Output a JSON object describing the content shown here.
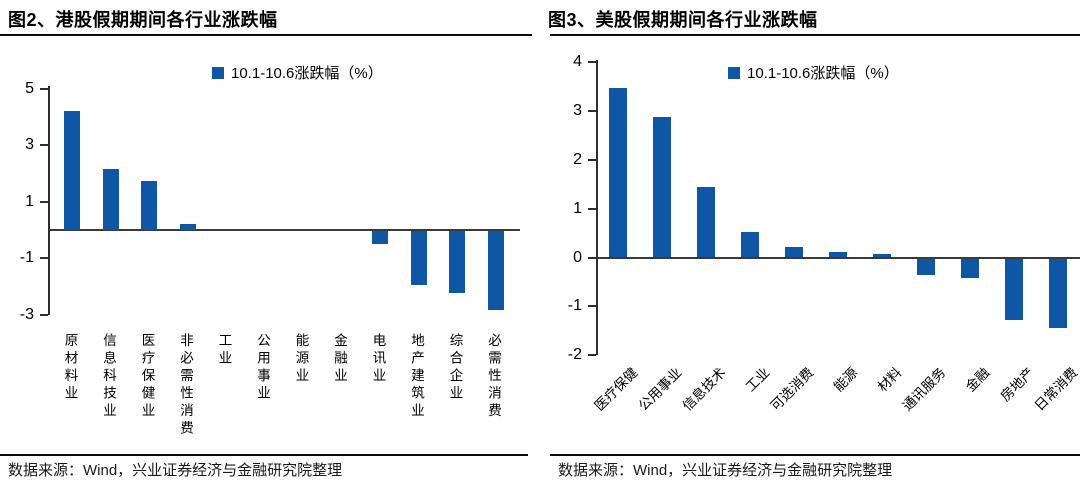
{
  "accent_color": "#0f57a5",
  "chart_data": [
    {
      "type": "bar",
      "panel_title": "图2、港股假期期间各行业涨跌幅",
      "legend": "10.1-10.6涨跌幅（%）",
      "legend_position": "top",
      "grid": false,
      "bar_color": "#0f57a5",
      "categories": [
        "原材料业",
        "信息科技业",
        "医疗保健业",
        "非必需性消费",
        "工业",
        "公用事业",
        "能源业",
        "金融业",
        "电讯业",
        "地产建筑业",
        "综合企业",
        "必需性消费"
      ],
      "values": [
        4.2,
        2.15,
        1.75,
        0.2,
        0,
        0,
        0,
        0,
        -0.45,
        -1.9,
        -2.2,
        -2.8
      ],
      "xlabel": "",
      "ylabel": "",
      "ylim": [
        -3,
        5.1
      ],
      "y_ticks": [
        5,
        3,
        1,
        -1,
        -3
      ],
      "xlabel_orientation": "vertical-upright",
      "source": "数据来源：Wind，兴业证券经济与金融研究院整理"
    },
    {
      "type": "bar",
      "panel_title": "图3、美股假期期间各行业涨跌幅",
      "legend": "10.1-10.6涨跌幅（%）",
      "legend_position": "top",
      "grid": false,
      "bar_color": "#0f57a5",
      "categories": [
        "医疗保健",
        "公用事业",
        "信息技术",
        "工业",
        "可选消费",
        "能源",
        "材料",
        "通讯服务",
        "金融",
        "房地产",
        "日常消费"
      ],
      "values": [
        3.48,
        2.87,
        1.45,
        0.52,
        0.21,
        0.11,
        0.08,
        -0.33,
        -0.4,
        -1.25,
        -1.43
      ],
      "xlabel": "",
      "ylabel": "",
      "ylim": [
        -2,
        4.05
      ],
      "y_ticks": [
        4,
        3,
        2,
        1,
        0,
        -1,
        -2
      ],
      "xlabel_orientation": "rotated-45",
      "source": "数据来源：Wind，兴业证券经济与金融研究院整理"
    }
  ]
}
